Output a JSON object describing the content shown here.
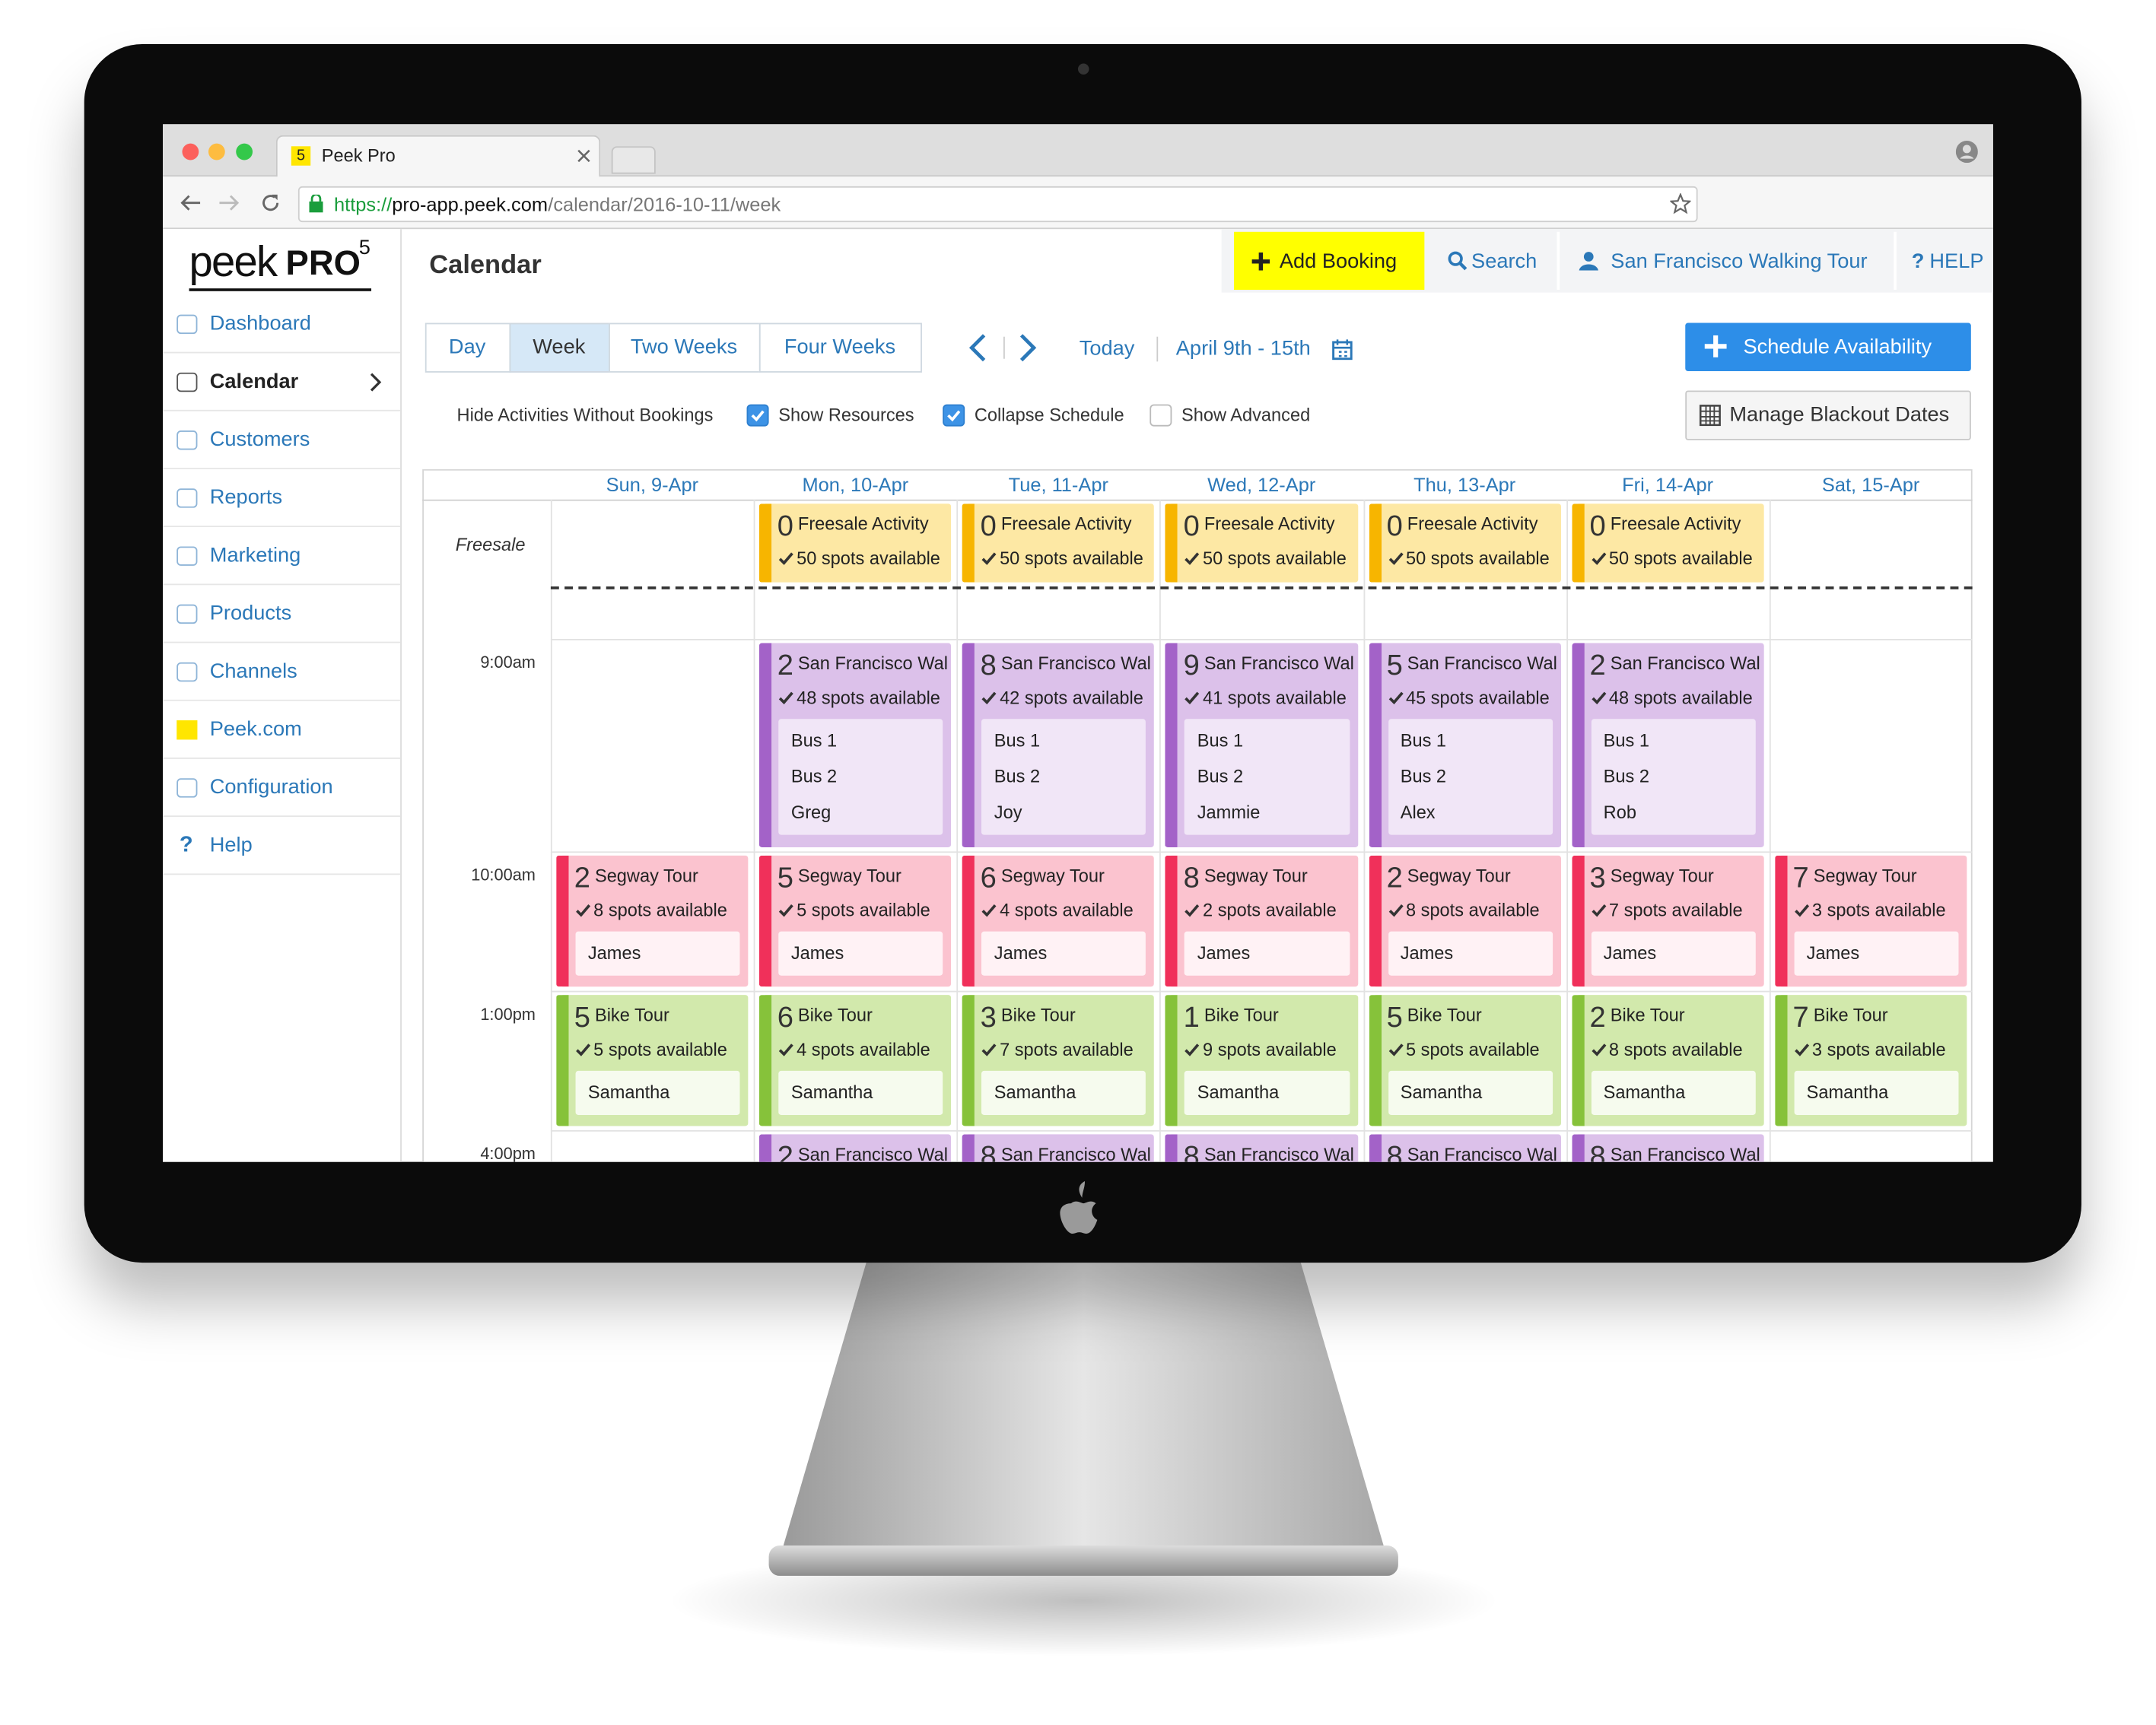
{
  "browser": {
    "tab_badge": "5",
    "tab_title": "Peek Pro",
    "url_scheme": "https://",
    "url_host": "pro-app.peek.com",
    "url_path": "/calendar/2016-10-11/week"
  },
  "logo": {
    "word": "peek",
    "pro": "PRO",
    "version": "5"
  },
  "sidebar": [
    {
      "label": "Dashboard"
    },
    {
      "label": "Calendar",
      "active": true
    },
    {
      "label": "Customers"
    },
    {
      "label": "Reports"
    },
    {
      "label": "Marketing"
    },
    {
      "label": "Products"
    },
    {
      "label": "Channels"
    },
    {
      "label": "Peek.com"
    },
    {
      "label": "Configuration"
    },
    {
      "label": "Help",
      "icon": "?"
    }
  ],
  "header": {
    "title": "Calendar",
    "add_booking": "Add Booking",
    "search": "Search",
    "account": "San Francisco Walking Tour",
    "help_icon": "?",
    "help": "HELP"
  },
  "toolbar": {
    "views": [
      "Day",
      "Week",
      "Two Weeks",
      "Four Weeks"
    ],
    "active_view": 1,
    "today": "Today",
    "range": "April 9th - 15th",
    "schedule": "Schedule Availability",
    "blackout": "Manage Blackout Dates"
  },
  "options": [
    {
      "label": "Hide Activities Without Bookings"
    },
    {
      "label": "Show Resources",
      "checked": true
    },
    {
      "label": "Collapse Schedule",
      "checked": true
    },
    {
      "label": "Show Advanced",
      "checked": false
    }
  ],
  "calendar": {
    "days": [
      "Sun, 9-Apr",
      "Mon, 10-Apr",
      "Tue, 11-Apr",
      "Wed, 12-Apr",
      "Thu, 13-Apr",
      "Fri, 14-Apr",
      "Sat, 15-Apr"
    ],
    "rows": [
      {
        "label": "Freesale",
        "events": [
          null,
          {
            "count": 0,
            "name": "Freesale Activity",
            "spots": "50 spots available"
          },
          {
            "count": 0,
            "name": "Freesale Activity",
            "spots": "50 spots available"
          },
          {
            "count": 0,
            "name": "Freesale Activity",
            "spots": "50 spots available"
          },
          {
            "count": 0,
            "name": "Freesale Activity",
            "spots": "50 spots available"
          },
          {
            "count": 0,
            "name": "Freesale Activity",
            "spots": "50 spots available"
          },
          null
        ]
      },
      {
        "label": "9:00am",
        "events": [
          null,
          {
            "count": 2,
            "name": "San Francisco Wal",
            "spots": "48 spots available",
            "resources": [
              "Bus 1",
              "Bus 2",
              "Greg"
            ]
          },
          {
            "count": 8,
            "name": "San Francisco Wal",
            "spots": "42 spots available",
            "resources": [
              "Bus 1",
              "Bus 2",
              "Joy"
            ]
          },
          {
            "count": 9,
            "name": "San Francisco Wal",
            "spots": "41 spots available",
            "resources": [
              "Bus 1",
              "Bus 2",
              "Jammie"
            ]
          },
          {
            "count": 5,
            "name": "San Francisco Wal",
            "spots": "45 spots available",
            "resources": [
              "Bus 1",
              "Bus 2",
              "Alex"
            ]
          },
          {
            "count": 2,
            "name": "San Francisco Wal",
            "spots": "48 spots available",
            "resources": [
              "Bus 1",
              "Bus 2",
              "Rob"
            ]
          },
          null
        ]
      },
      {
        "label": "10:00am",
        "events": [
          {
            "count": 2,
            "name": "Segway Tour",
            "spots": "8 spots available",
            "resources": [
              "James"
            ]
          },
          {
            "count": 5,
            "name": "Segway Tour",
            "spots": "5 spots available",
            "resources": [
              "James"
            ]
          },
          {
            "count": 6,
            "name": "Segway Tour",
            "spots": "4 spots available",
            "resources": [
              "James"
            ]
          },
          {
            "count": 8,
            "name": "Segway Tour",
            "spots": "2 spots available",
            "resources": [
              "James"
            ]
          },
          {
            "count": 2,
            "name": "Segway Tour",
            "spots": "8 spots available",
            "resources": [
              "James"
            ]
          },
          {
            "count": 3,
            "name": "Segway Tour",
            "spots": "7 spots available",
            "resources": [
              "James"
            ]
          },
          {
            "count": 7,
            "name": "Segway Tour",
            "spots": "3 spots available",
            "resources": [
              "James"
            ]
          }
        ]
      },
      {
        "label": "1:00pm",
        "events": [
          {
            "count": 5,
            "name": "Bike Tour",
            "spots": "5 spots available",
            "resources": [
              "Samantha"
            ]
          },
          {
            "count": 6,
            "name": "Bike Tour",
            "spots": "4 spots available",
            "resources": [
              "Samantha"
            ]
          },
          {
            "count": 3,
            "name": "Bike Tour",
            "spots": "7 spots available",
            "resources": [
              "Samantha"
            ]
          },
          {
            "count": 1,
            "name": "Bike Tour",
            "spots": "9 spots available",
            "resources": [
              "Samantha"
            ]
          },
          {
            "count": 5,
            "name": "Bike Tour",
            "spots": "5 spots available",
            "resources": [
              "Samantha"
            ]
          },
          {
            "count": 2,
            "name": "Bike Tour",
            "spots": "8 spots available",
            "resources": [
              "Samantha"
            ]
          },
          {
            "count": 7,
            "name": "Bike Tour",
            "spots": "3 spots available",
            "resources": [
              "Samantha"
            ]
          }
        ]
      },
      {
        "label": "4:00pm",
        "events": [
          null,
          {
            "count": 2,
            "name": "San Francisco Wal"
          },
          {
            "count": 8,
            "name": "San Francisco Wal"
          },
          {
            "count": 8,
            "name": "San Francisco Wal"
          },
          {
            "count": 8,
            "name": "San Francisco Wal"
          },
          {
            "count": 8,
            "name": "San Francisco Wal"
          },
          null
        ]
      }
    ]
  }
}
